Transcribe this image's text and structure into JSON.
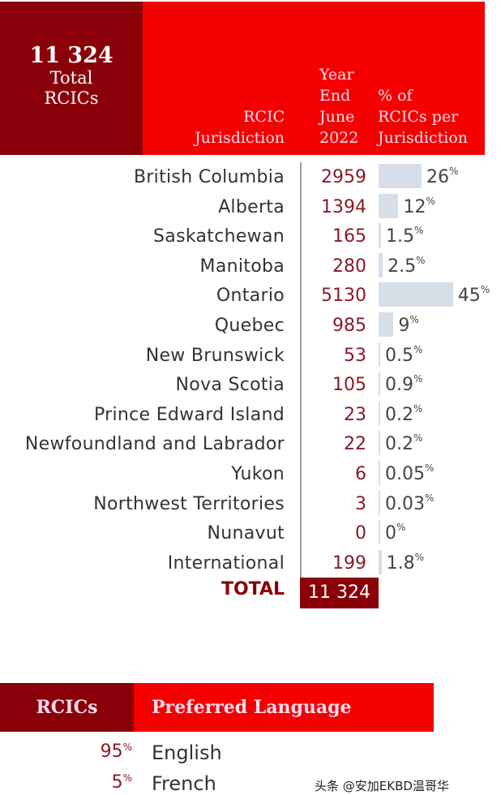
{
  "header": {
    "total_number": "11 324",
    "total_label_1": "Total",
    "total_label_2": "RCICs",
    "col_jurisdiction": [
      "RCIC",
      "Jurisdiction"
    ],
    "col_year": [
      "Year",
      "End",
      "June",
      "2022"
    ],
    "col_pct": [
      "% of",
      "RCICs per",
      "Jurisdiction"
    ]
  },
  "colors": {
    "dark_red": "#8a0008",
    "red": "#f30000",
    "bar": "#d6dee8",
    "number": "#8b1a2a"
  },
  "chart_data": {
    "type": "table",
    "categories": [
      "British Columbia",
      "Alberta",
      "Saskatchewan",
      "Manitoba",
      "Ontario",
      "Quebec",
      "New Brunswick",
      "Nova Scotia",
      "Prince Edward Island",
      "Newfoundland and Labrador",
      "Yukon",
      "Northwest Territories",
      "Nunavut",
      "International"
    ],
    "counts": [
      "2959",
      "1394",
      "165",
      "280",
      "5130",
      "985",
      "53",
      "105",
      "23",
      "22",
      "6",
      "3",
      "0",
      "199"
    ],
    "percent_labels": [
      "26",
      "12",
      "1.5",
      "2.5",
      "45",
      "9",
      "0.5",
      "0.9",
      "0.2",
      "0.2",
      "0.05",
      "0.03",
      "0",
      "1.8"
    ],
    "percent_values": [
      26,
      12,
      1.5,
      2.5,
      45,
      9,
      0.5,
      0.9,
      0.2,
      0.2,
      0.05,
      0.03,
      0,
      1.8
    ],
    "total_label": "TOTAL",
    "total_value": "11 324"
  },
  "language": {
    "header_left": "RCICs",
    "header_right": "Preferred Language",
    "rows": [
      {
        "pct": "95",
        "name": "English"
      },
      {
        "pct": "5",
        "name": "French"
      }
    ]
  },
  "watermark": "头条 @安加EKBD温哥华"
}
